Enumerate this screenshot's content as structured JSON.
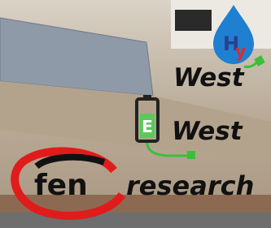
{
  "logos": [
    {
      "mark": "H",
      "mark_accent": "y",
      "label": "West"
    },
    {
      "mark": "E",
      "label": "West"
    },
    {
      "mark": "fen",
      "label": "research"
    }
  ]
}
